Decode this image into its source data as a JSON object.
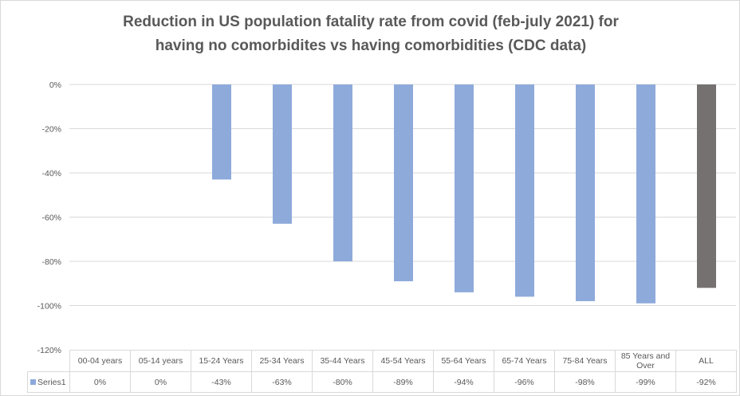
{
  "chart_data": {
    "type": "bar",
    "title": "Reduction in US population fatality rate from covid (feb-july 2021)  for having no comorbidites vs having comorbidities (CDC data)",
    "title_lines": [
      "Reduction in US population fatality rate from covid (feb-july 2021)  for",
      "having no comorbidites vs having comorbidities (CDC data)"
    ],
    "categories": [
      "00-04 years",
      "05-14 years",
      "15-24 Years",
      "25-34 Years",
      "35-44 Years",
      "45-54 Years",
      "55-64 Years",
      "65-74 Years",
      "75-84 Years",
      "85 Years and Over",
      "ALL"
    ],
    "series": [
      {
        "name": "Series1",
        "values": [
          0,
          0,
          -43,
          -63,
          -80,
          -89,
          -94,
          -96,
          -98,
          -99,
          -92
        ]
      }
    ],
    "value_labels": [
      "0%",
      "0%",
      "-43%",
      "-63%",
      "-80%",
      "-89%",
      "-94%",
      "-96%",
      "-98%",
      "-99%",
      "-92%"
    ],
    "ylim": [
      -120,
      0
    ],
    "yticks": [
      0,
      -20,
      -40,
      -60,
      -80,
      -100,
      -120
    ],
    "ytick_labels": [
      "0%",
      "-20%",
      "-40%",
      "-60%",
      "-80%",
      "-100%",
      "-120%"
    ],
    "grid": true,
    "legend": "data-table",
    "colors": {
      "bar": "#8eaadb",
      "highlight": "#767171",
      "grid": "#d9d9d9"
    }
  }
}
